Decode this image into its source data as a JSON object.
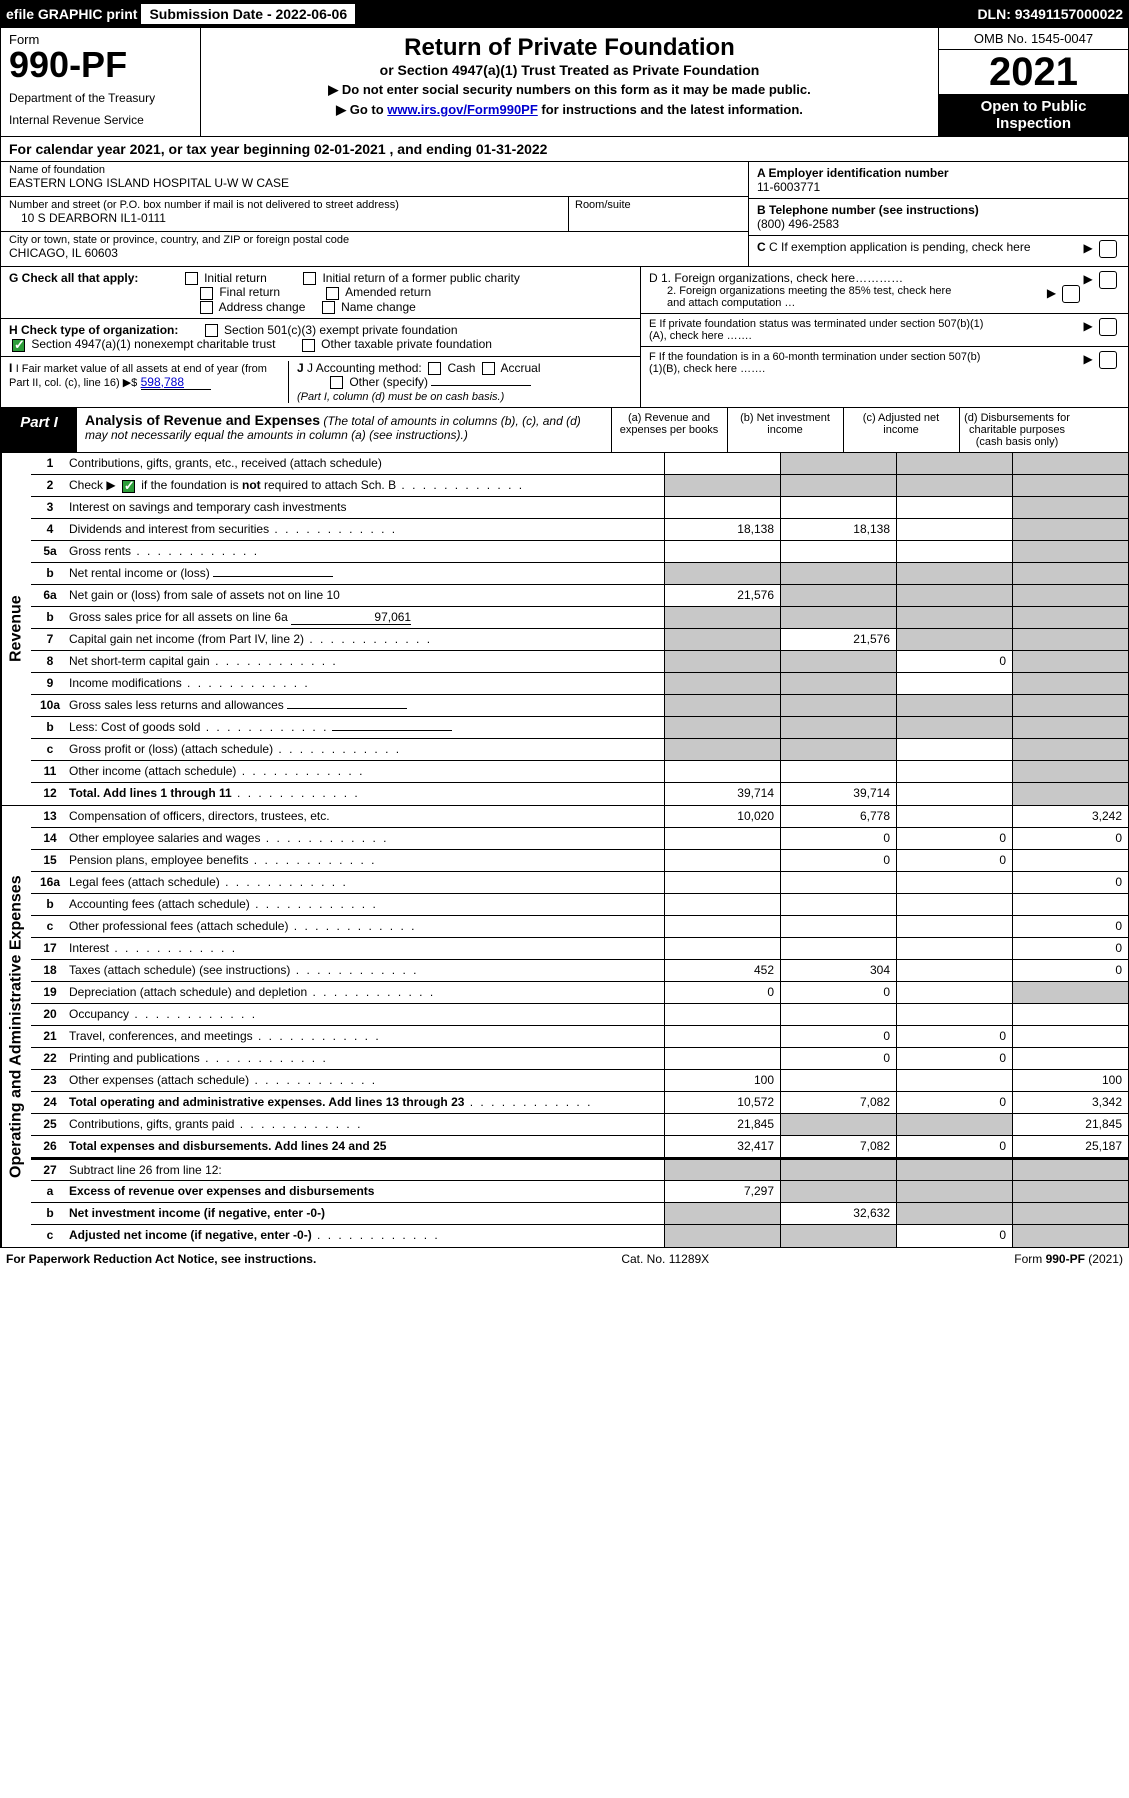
{
  "top_bar": {
    "efile": "efile GRAPHIC print",
    "sub_label": "Submission Date - 2022-06-06",
    "dln": "DLN: 93491157000022"
  },
  "header": {
    "form_word": "Form",
    "form_num": "990-PF",
    "dept": "Department of the Treasury",
    "irs": "Internal Revenue Service",
    "title": "Return of Private Foundation",
    "subtitle": "or Section 4947(a)(1) Trust Treated as Private Foundation",
    "line1": "▶ Do not enter social security numbers on this form as it may be made public.",
    "line2_pre": "▶ Go to ",
    "line2_link": "www.irs.gov/Form990PF",
    "line2_post": " for instructions and the latest information.",
    "omb": "OMB No. 1545-0047",
    "year": "2021",
    "open": "Open to Public Inspection"
  },
  "calyear": "For calendar year 2021, or tax year beginning 02-01-2021             , and ending 01-31-2022",
  "id": {
    "name_lbl": "Name of foundation",
    "name": "EASTERN LONG ISLAND HOSPITAL U-W W CASE",
    "addr_lbl": "Number and street (or P.O. box number if mail is not delivered to street address)",
    "addr": "10 S DEARBORN IL1-0111",
    "suite_lbl": "Room/suite",
    "city_lbl": "City or town, state or province, country, and ZIP or foreign postal code",
    "city": "CHICAGO, IL  60603",
    "a_lbl": "A Employer identification number",
    "a_val": "11-6003771",
    "b_lbl": "B Telephone number (see instructions)",
    "b_val": "(800) 496-2583",
    "c_lbl": "C If exemption application is pending, check here"
  },
  "checks": {
    "g_lbl": "G Check all that apply:",
    "g1": "Initial return",
    "g2": "Initial return of a former public charity",
    "g3": "Final return",
    "g4": "Amended return",
    "g5": "Address change",
    "g6": "Name change",
    "h_lbl": "H Check type of organization:",
    "h1": "Section 501(c)(3) exempt private foundation",
    "h2": "Section 4947(a)(1) nonexempt charitable trust",
    "h3": "Other taxable private foundation",
    "i_lbl": "I Fair market value of all assets at end of year (from Part II, col. (c), line 16) ▶$",
    "i_val": "598,788",
    "j_lbl": "J Accounting method:",
    "j1": "Cash",
    "j2": "Accrual",
    "j3": "Other (specify)",
    "j_note": "(Part I, column (d) must be on cash basis.)",
    "d1": "D 1. Foreign organizations, check here…………",
    "d2": "2. Foreign organizations meeting the 85% test, check here and attach computation …",
    "e": "E  If private foundation status was terminated under section 507(b)(1)(A), check here …….",
    "f": "F  If the foundation is in a 60-month termination under section 507(b)(1)(B), check here ……."
  },
  "part1": {
    "tab": "Part I",
    "title": "Analysis of Revenue and Expenses",
    "note": " (The total of amounts in columns (b), (c), and (d) may not necessarily equal the amounts in column (a) (see instructions).)",
    "ca": "(a)   Revenue and expenses per books",
    "cb": "(b)   Net investment income",
    "cc": "(c)   Adjusted net income",
    "cd": "(d)   Disbursements for charitable purposes (cash basis only)"
  },
  "rev_label": "Revenue",
  "exp_label": "Operating and Administrative Expenses",
  "rows_rev": [
    {
      "n": "1",
      "d": "Contributions, gifts, grants, etc., received (attach schedule)",
      "a": "",
      "b": "g",
      "c": "g",
      "dd": "g"
    },
    {
      "n": "2",
      "d": "Check ▶ [chk] if the foundation is not required to attach Sch. B",
      "a": "g",
      "b": "g",
      "c": "g",
      "dd": "g",
      "dots": true,
      "chk": true,
      "notreq": true
    },
    {
      "n": "3",
      "d": "Interest on savings and temporary cash investments",
      "a": "",
      "b": "",
      "c": "",
      "dd": "g"
    },
    {
      "n": "4",
      "d": "Dividends and interest from securities",
      "a": "18,138",
      "b": "18,138",
      "c": "",
      "dd": "g",
      "dots": true
    },
    {
      "n": "5a",
      "d": "Gross rents",
      "a": "",
      "b": "",
      "c": "",
      "dd": "g",
      "dots": true
    },
    {
      "n": "b",
      "d": "Net rental income or (loss)",
      "a": "g",
      "b": "g",
      "c": "g",
      "dd": "g",
      "inline": true
    },
    {
      "n": "6a",
      "d": "Net gain or (loss) from sale of assets not on line 10",
      "a": "21,576",
      "b": "g",
      "c": "g",
      "dd": "g"
    },
    {
      "n": "b",
      "d": "Gross sales price for all assets on line 6a",
      "a": "g",
      "b": "g",
      "c": "g",
      "dd": "g",
      "inline": true,
      "inlineval": "97,061"
    },
    {
      "n": "7",
      "d": "Capital gain net income (from Part IV, line 2)",
      "a": "g",
      "b": "21,576",
      "c": "g",
      "dd": "g",
      "dots": true
    },
    {
      "n": "8",
      "d": "Net short-term capital gain",
      "a": "g",
      "b": "g",
      "c": "0",
      "dd": "g",
      "dots": true
    },
    {
      "n": "9",
      "d": "Income modifications",
      "a": "g",
      "b": "g",
      "c": "",
      "dd": "g",
      "dots": true
    },
    {
      "n": "10a",
      "d": "Gross sales less returns and allowances",
      "a": "g",
      "b": "g",
      "c": "g",
      "dd": "g",
      "inline": true
    },
    {
      "n": "b",
      "d": "Less: Cost of goods sold",
      "a": "g",
      "b": "g",
      "c": "g",
      "dd": "g",
      "inline": true,
      "dots": true
    },
    {
      "n": "c",
      "d": "Gross profit or (loss) (attach schedule)",
      "a": "g",
      "b": "g",
      "c": "",
      "dd": "g",
      "dots": true
    },
    {
      "n": "11",
      "d": "Other income (attach schedule)",
      "a": "",
      "b": "",
      "c": "",
      "dd": "g",
      "dots": true
    },
    {
      "n": "12",
      "d": "Total. Add lines 1 through 11",
      "a": "39,714",
      "b": "39,714",
      "c": "",
      "dd": "g",
      "dots": true,
      "bold": true
    }
  ],
  "rows_exp": [
    {
      "n": "13",
      "d": "Compensation of officers, directors, trustees, etc.",
      "a": "10,020",
      "b": "6,778",
      "c": "",
      "dd": "3,242"
    },
    {
      "n": "14",
      "d": "Other employee salaries and wages",
      "a": "",
      "b": "0",
      "c": "0",
      "dd": "0",
      "dots": true
    },
    {
      "n": "15",
      "d": "Pension plans, employee benefits",
      "a": "",
      "b": "0",
      "c": "0",
      "dd": "",
      "dots": true
    },
    {
      "n": "16a",
      "d": "Legal fees (attach schedule)",
      "a": "",
      "b": "",
      "c": "",
      "dd": "0",
      "dots": true
    },
    {
      "n": "b",
      "d": "Accounting fees (attach schedule)",
      "a": "",
      "b": "",
      "c": "",
      "dd": "",
      "dots": true
    },
    {
      "n": "c",
      "d": "Other professional fees (attach schedule)",
      "a": "",
      "b": "",
      "c": "",
      "dd": "0",
      "dots": true
    },
    {
      "n": "17",
      "d": "Interest",
      "a": "",
      "b": "",
      "c": "",
      "dd": "0",
      "dots": true
    },
    {
      "n": "18",
      "d": "Taxes (attach schedule) (see instructions)",
      "a": "452",
      "b": "304",
      "c": "",
      "dd": "0",
      "dots": true
    },
    {
      "n": "19",
      "d": "Depreciation (attach schedule) and depletion",
      "a": "0",
      "b": "0",
      "c": "",
      "dd": "g",
      "dots": true
    },
    {
      "n": "20",
      "d": "Occupancy",
      "a": "",
      "b": "",
      "c": "",
      "dd": "",
      "dots": true
    },
    {
      "n": "21",
      "d": "Travel, conferences, and meetings",
      "a": "",
      "b": "0",
      "c": "0",
      "dd": "",
      "dots": true
    },
    {
      "n": "22",
      "d": "Printing and publications",
      "a": "",
      "b": "0",
      "c": "0",
      "dd": "",
      "dots": true
    },
    {
      "n": "23",
      "d": "Other expenses (attach schedule)",
      "a": "100",
      "b": "",
      "c": "",
      "dd": "100",
      "dots": true
    },
    {
      "n": "24",
      "d": "Total operating and administrative expenses. Add lines 13 through 23",
      "a": "10,572",
      "b": "7,082",
      "c": "0",
      "dd": "3,342",
      "dots": true,
      "bold": true
    },
    {
      "n": "25",
      "d": "Contributions, gifts, grants paid",
      "a": "21,845",
      "b": "g",
      "c": "g",
      "dd": "21,845",
      "dots": true
    },
    {
      "n": "26",
      "d": "Total expenses and disbursements. Add lines 24 and 25",
      "a": "32,417",
      "b": "7,082",
      "c": "0",
      "dd": "25,187",
      "bold": true
    },
    {
      "n": "27",
      "d": "Subtract line 26 from line 12:",
      "a": "g",
      "b": "g",
      "c": "g",
      "dd": "g",
      "thick": true
    },
    {
      "n": "a",
      "d": "Excess of revenue over expenses and disbursements",
      "a": "7,297",
      "b": "g",
      "c": "g",
      "dd": "g",
      "bold": true
    },
    {
      "n": "b",
      "d": "Net investment income (if negative, enter -0-)",
      "a": "g",
      "b": "32,632",
      "c": "g",
      "dd": "g",
      "bold": true
    },
    {
      "n": "c",
      "d": "Adjusted net income (if negative, enter -0-)",
      "a": "g",
      "b": "g",
      "c": "0",
      "dd": "g",
      "bold": true,
      "dots": true
    }
  ],
  "footer": {
    "left": "For Paperwork Reduction Act Notice, see instructions.",
    "mid": "Cat. No. 11289X",
    "right": "Form 990-PF (2021)"
  },
  "colors": {
    "grey": "#c8c8c8",
    "link": "#0000d0",
    "check": "#2d9d3a"
  }
}
